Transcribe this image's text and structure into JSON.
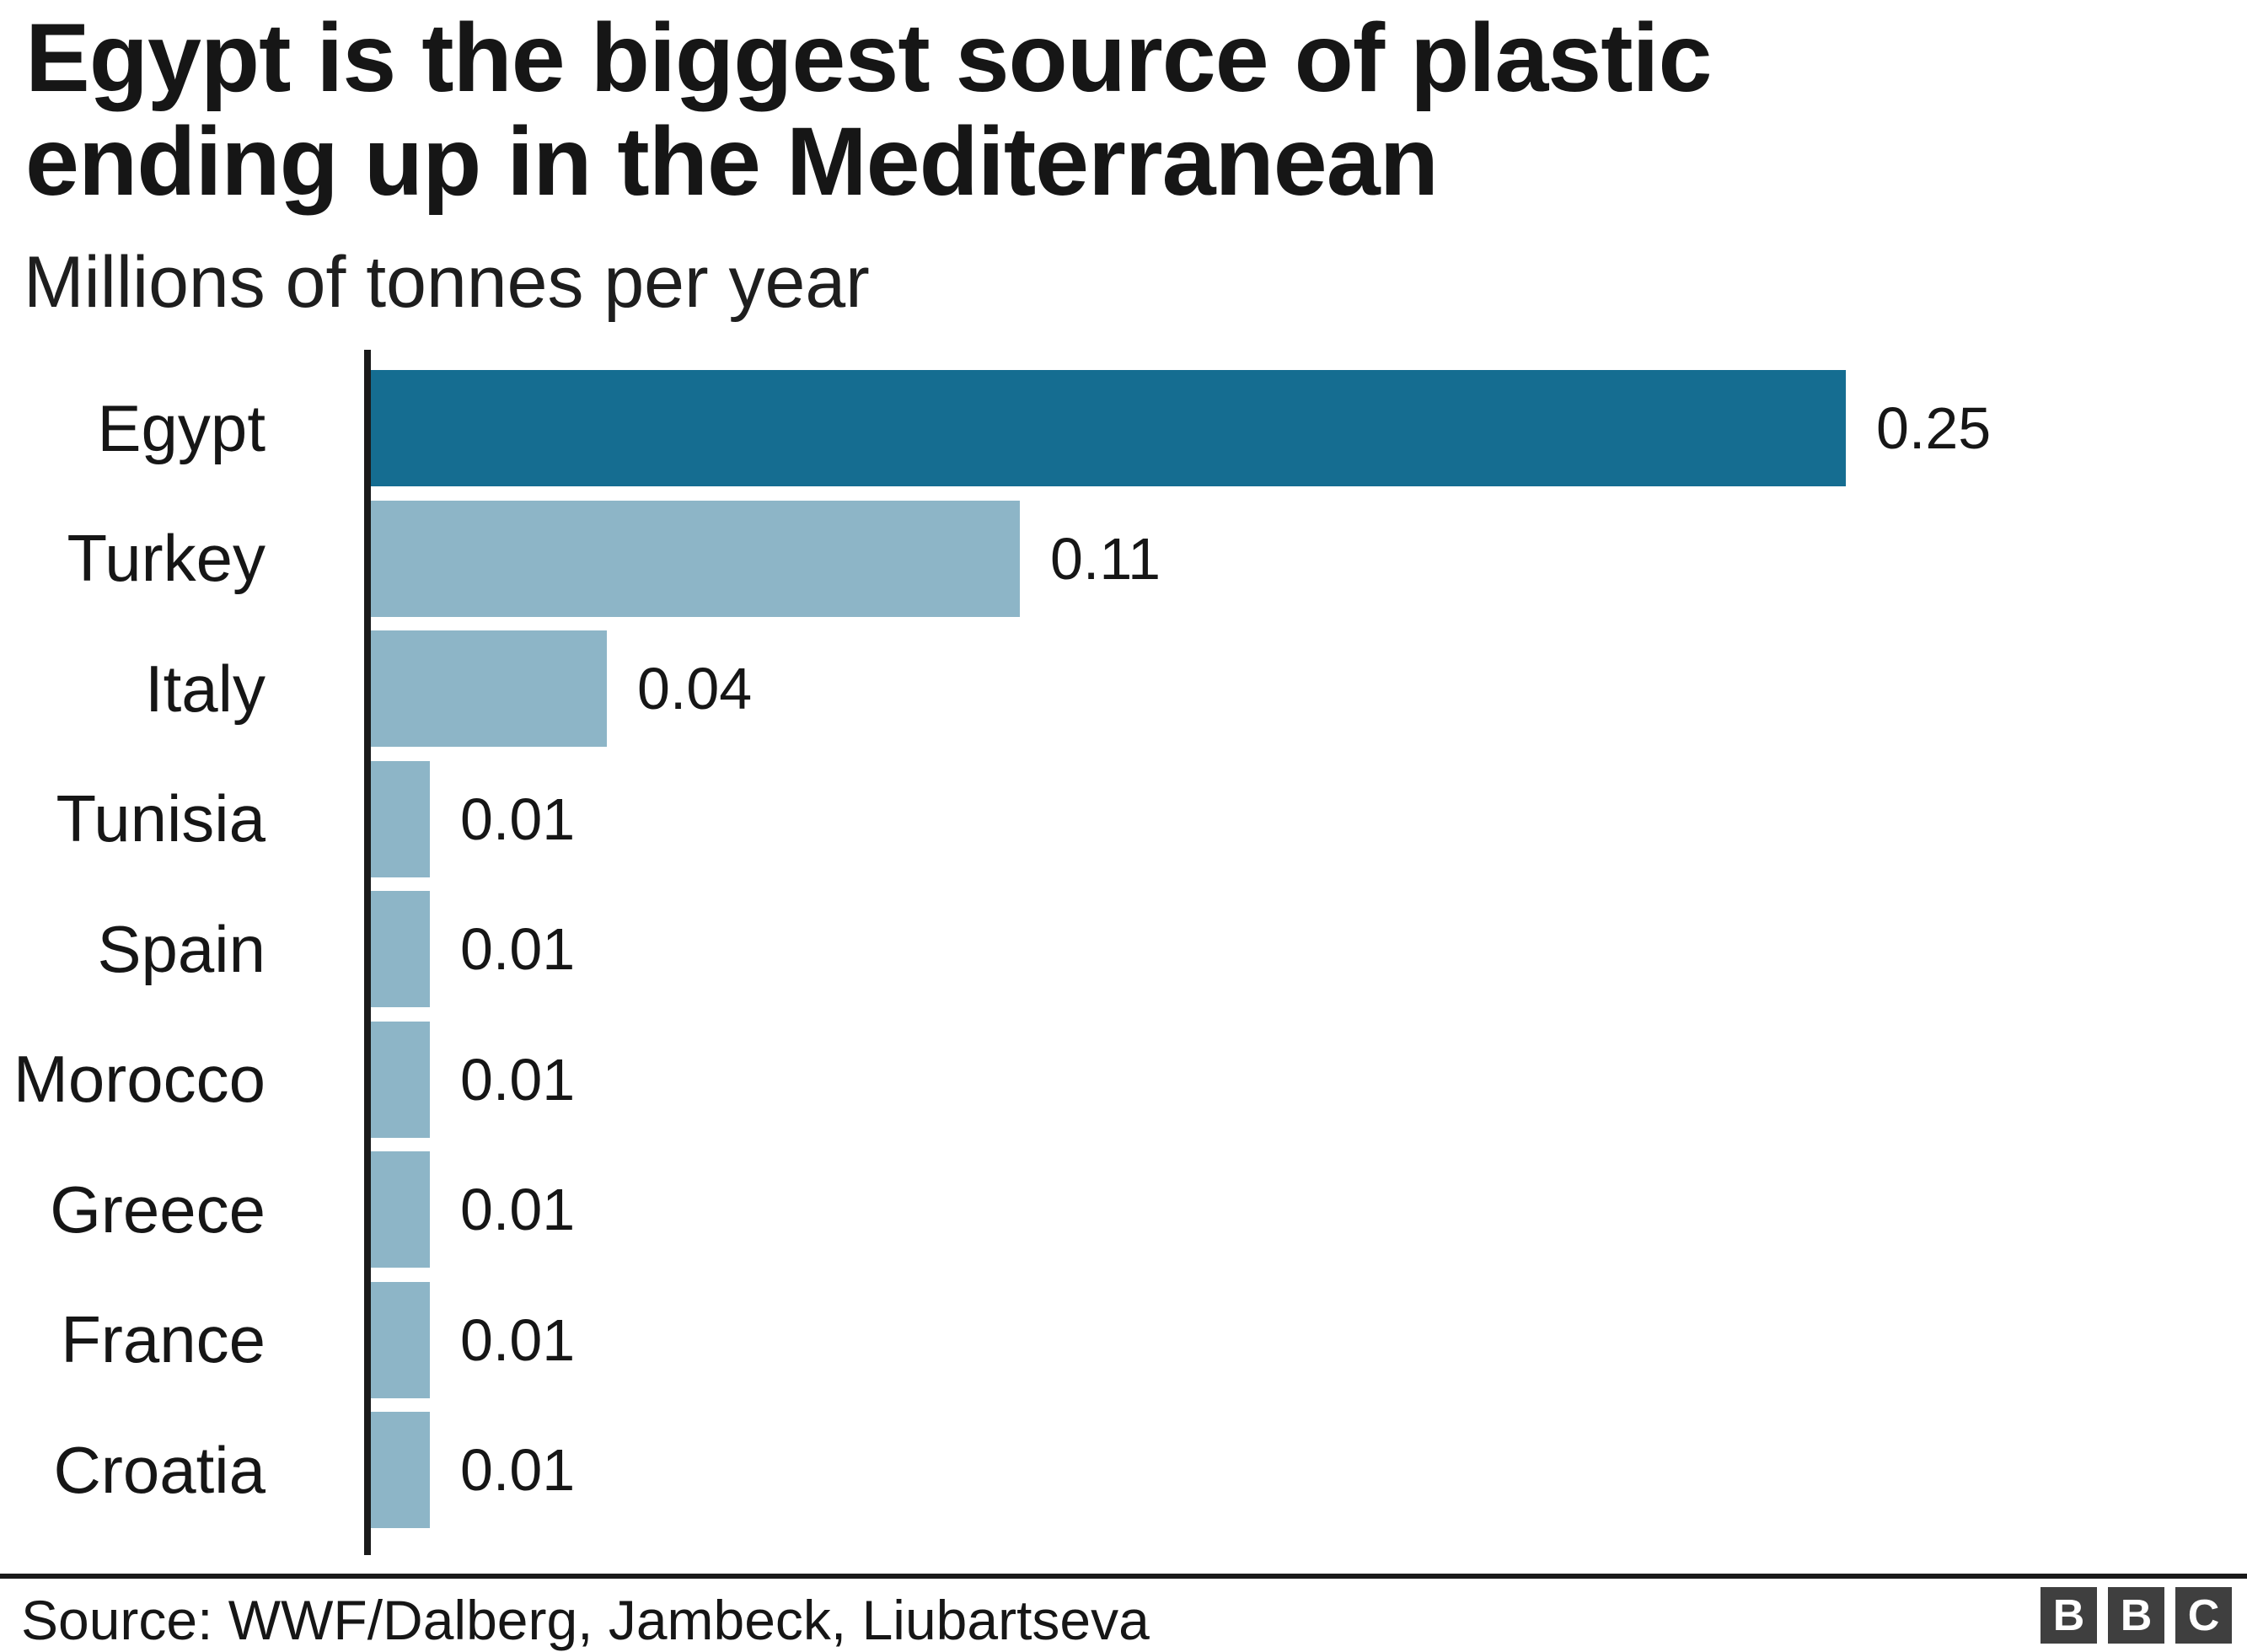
{
  "header": {
    "title_lines": [
      "Egypt is the biggest source of plastic",
      "ending up in the Mediterranean"
    ],
    "subtitle": "Millions of tonnes per year"
  },
  "chart_data": {
    "type": "bar",
    "orientation": "horizontal",
    "title": "Egypt is the biggest source of plastic ending up in the Mediterranean",
    "subtitle": "Millions of tonnes per year",
    "xlabel": "",
    "ylabel": "",
    "unit": "millions of tonnes per year",
    "categories": [
      "Egypt",
      "Turkey",
      "Italy",
      "Tunisia",
      "Spain",
      "Morocco",
      "Greece",
      "France",
      "Croatia"
    ],
    "values": [
      0.25,
      0.11,
      0.04,
      0.01,
      0.01,
      0.01,
      0.01,
      0.01,
      0.01
    ],
    "display_values": [
      "0.25",
      "0.11",
      "0.04",
      "0.01",
      "0.01",
      "0.01",
      "0.01",
      "0.01",
      "0.01"
    ],
    "xlim": [
      0,
      0.27
    ],
    "grid": false,
    "legend": false,
    "highlight_category": "Egypt"
  },
  "footer": {
    "source": "Source: WWF/Dalberg, Jambeck, Liubartseva",
    "logo_letters": [
      "B",
      "B",
      "C"
    ]
  },
  "theme": {
    "accent_bar": "#156D91",
    "light_bar": "#8DB5C7",
    "axis": "#1A1A1A",
    "text": "#161616",
    "logo_bg": "#3F3F3F",
    "background": "#FFFFFF"
  }
}
